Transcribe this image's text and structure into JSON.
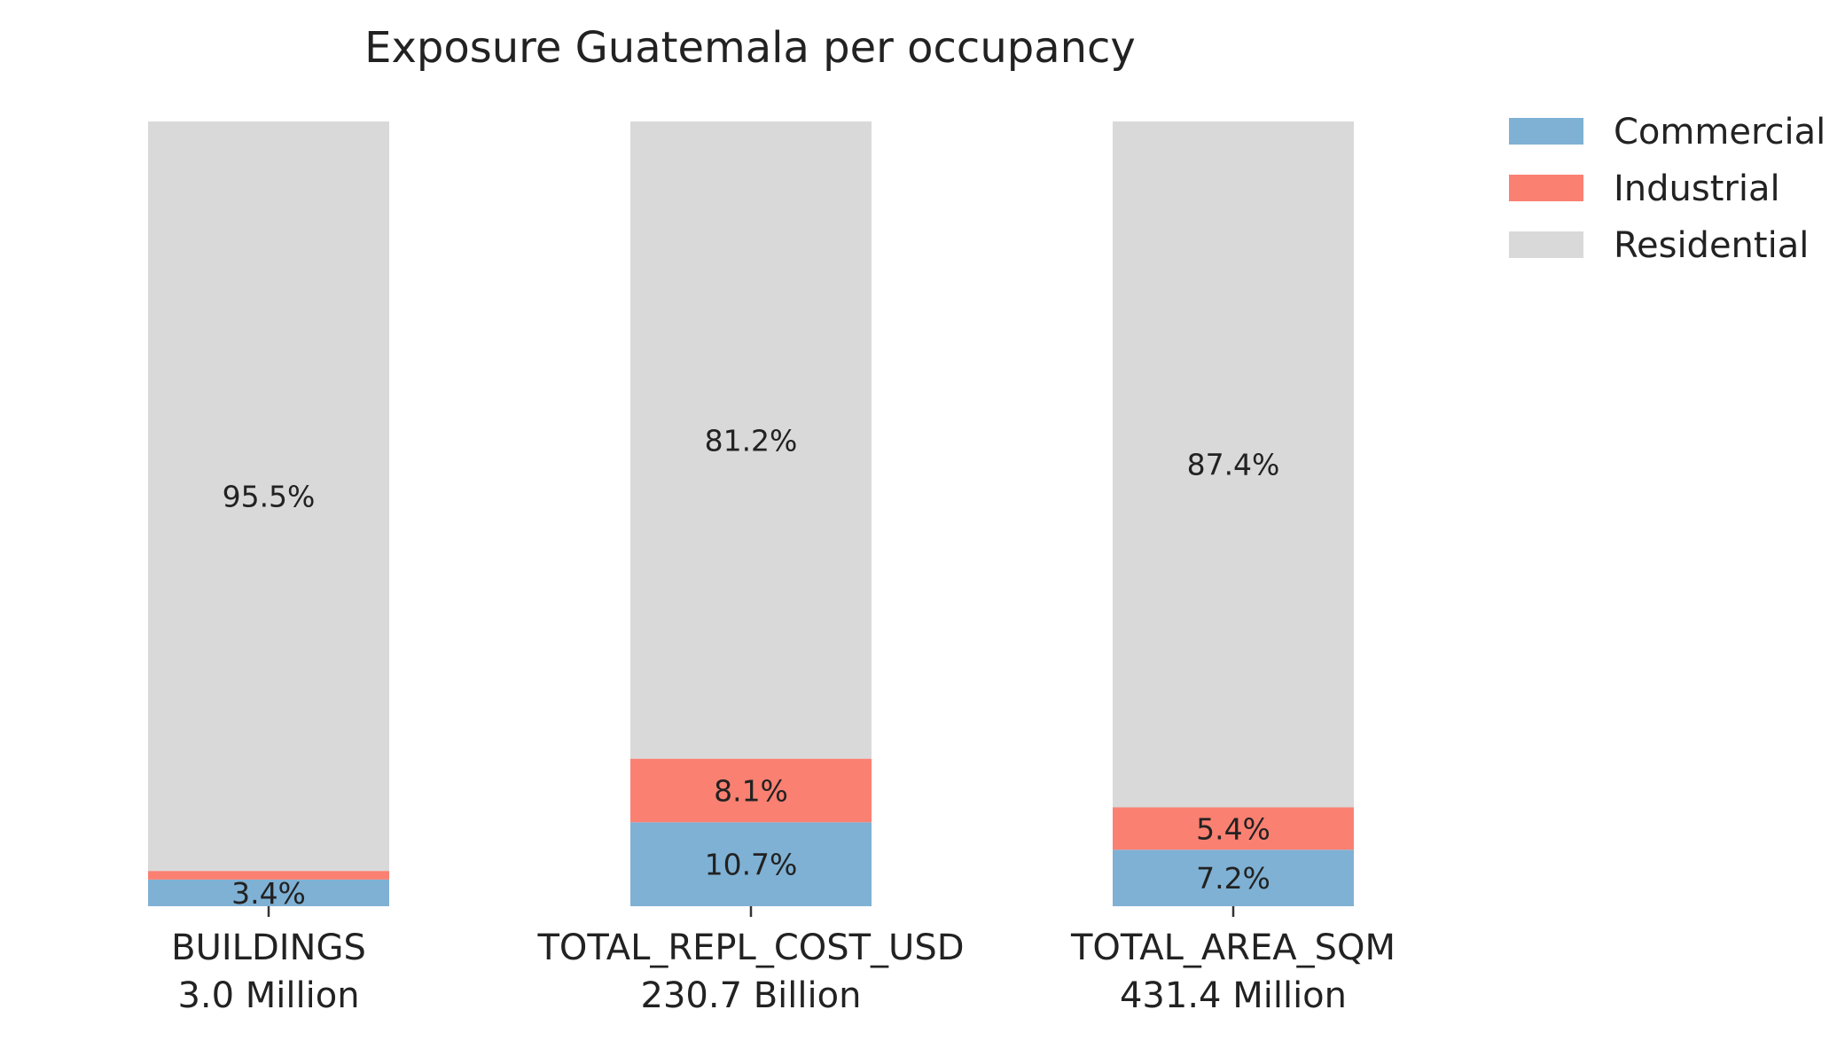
{
  "chart_data": {
    "type": "bar",
    "stacked": true,
    "normalized": true,
    "title": "Exposure Guatemala per occupancy",
    "categories": [
      "BUILDINGS",
      "TOTAL_REPL_COST_USD",
      "TOTAL_AREA_SQM"
    ],
    "category_totals": [
      "3.0 Million",
      "230.7 Billion",
      "431.4 Million"
    ],
    "series": [
      {
        "name": "Commercial",
        "color": "#7fb1d4",
        "values": [
          3.4,
          10.7,
          7.2
        ],
        "labels": [
          "3.4%",
          "10.7%",
          "7.2%"
        ]
      },
      {
        "name": "Industrial",
        "color": "#fa8072",
        "values": [
          1.1,
          8.1,
          5.4
        ],
        "labels": [
          "",
          "8.1%",
          "5.4%"
        ]
      },
      {
        "name": "Residential",
        "color": "#d9d9d9",
        "values": [
          95.5,
          81.2,
          87.4
        ],
        "labels": [
          "95.5%",
          "81.2%",
          "87.4%"
        ]
      }
    ],
    "ylim": [
      0,
      100
    ],
    "legend_position": "top-right",
    "grid": false
  }
}
